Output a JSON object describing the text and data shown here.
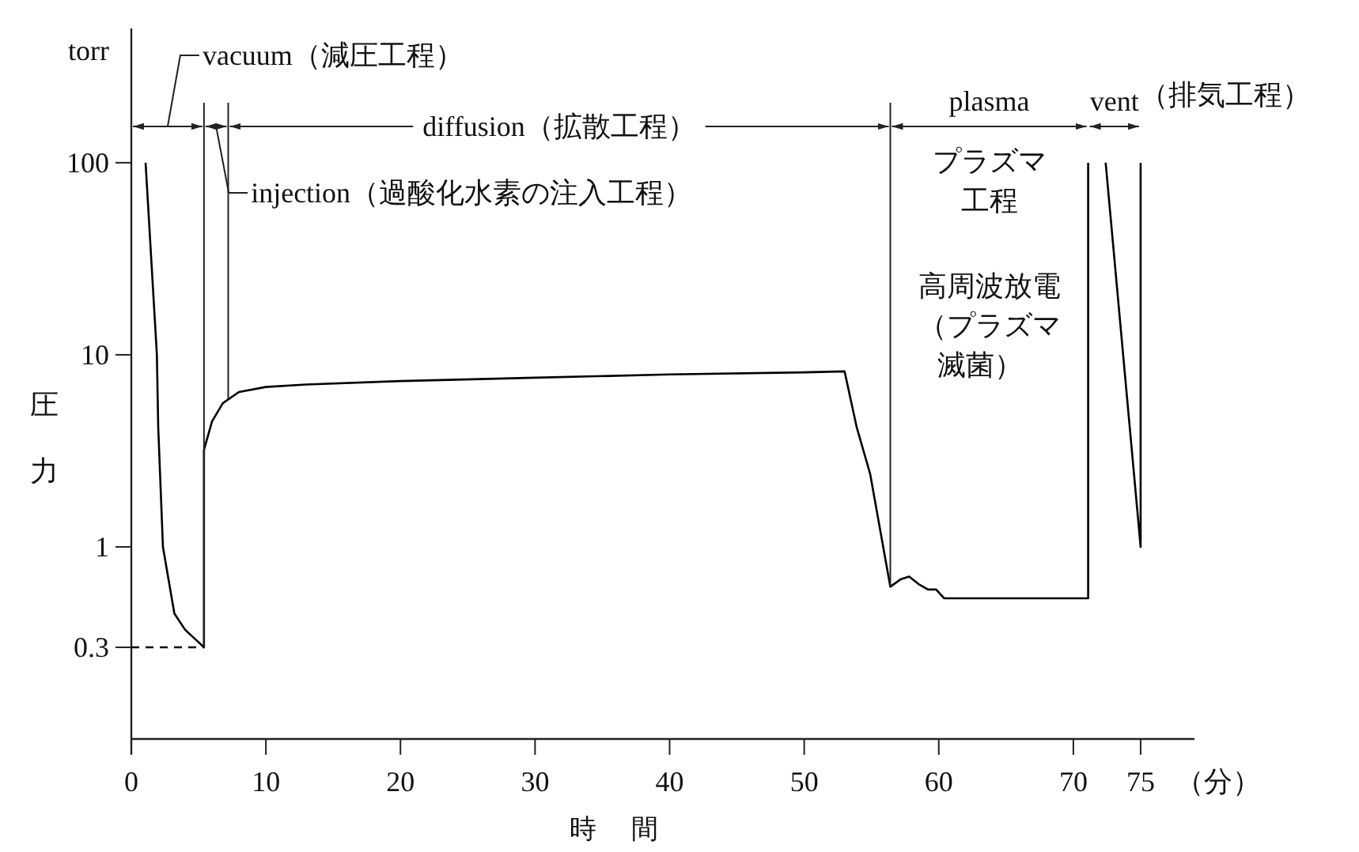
{
  "chart_data": {
    "type": "line",
    "xlabel": "時間",
    "ylabel": "圧力",
    "log": "y",
    "xlim": [
      0,
      79
    ],
    "ylim": [
      0.1,
      500
    ],
    "xticks": [
      0,
      10,
      20,
      30,
      40,
      50,
      60,
      70,
      75
    ],
    "yticks": [
      0.3,
      1,
      10,
      100
    ],
    "grid": false,
    "series": [
      {
        "color": "#000000",
        "x": [
          1.06,
          1.5,
          1.9,
          2.0,
          2.35,
          3.2,
          4.0,
          5.4,
          5.4,
          6.0,
          6.8,
          8,
          10,
          13,
          20,
          30,
          40,
          50,
          53,
          53.9,
          54.9,
          56.4,
          57.2,
          57.8,
          58.5,
          59.2,
          59.8,
          60.4,
          71.1,
          71.1
        ],
        "values": [
          100,
          30,
          10,
          4.2,
          1,
          0.45,
          0.37,
          0.3,
          3.2,
          4.5,
          5.6,
          6.4,
          6.8,
          7,
          7.3,
          7.6,
          7.9,
          8.1,
          8.2,
          4.2,
          2.4,
          0.62,
          0.68,
          0.7,
          0.64,
          0.6,
          0.6,
          0.54,
          0.54,
          100
        ]
      },
      {
        "color": "#000000",
        "x": [
          72.4,
          75,
          75
        ],
        "values": [
          100,
          1,
          100
        ]
      },
      {
        "color": "#000000",
        "line_style": "dashed",
        "x": [
          0,
          5.4
        ],
        "values": [
          0.3,
          0.3
        ]
      }
    ],
    "ref_lines": [
      {
        "axis": "x",
        "value": 5.4
      },
      {
        "axis": "x",
        "value": 7.2
      },
      {
        "axis": "x",
        "value": 56.4
      }
    ],
    "annotations": [
      "vacuum（減圧工程）",
      "injection（過酸化水素の注入工程）",
      "diffusion（拡散工程）",
      "plasma",
      "vent",
      "（排気工程）",
      "torr",
      "（分）",
      "プラズマ",
      "工程",
      "高周波放電",
      "（プラズマ",
      "滅菌）"
    ]
  }
}
